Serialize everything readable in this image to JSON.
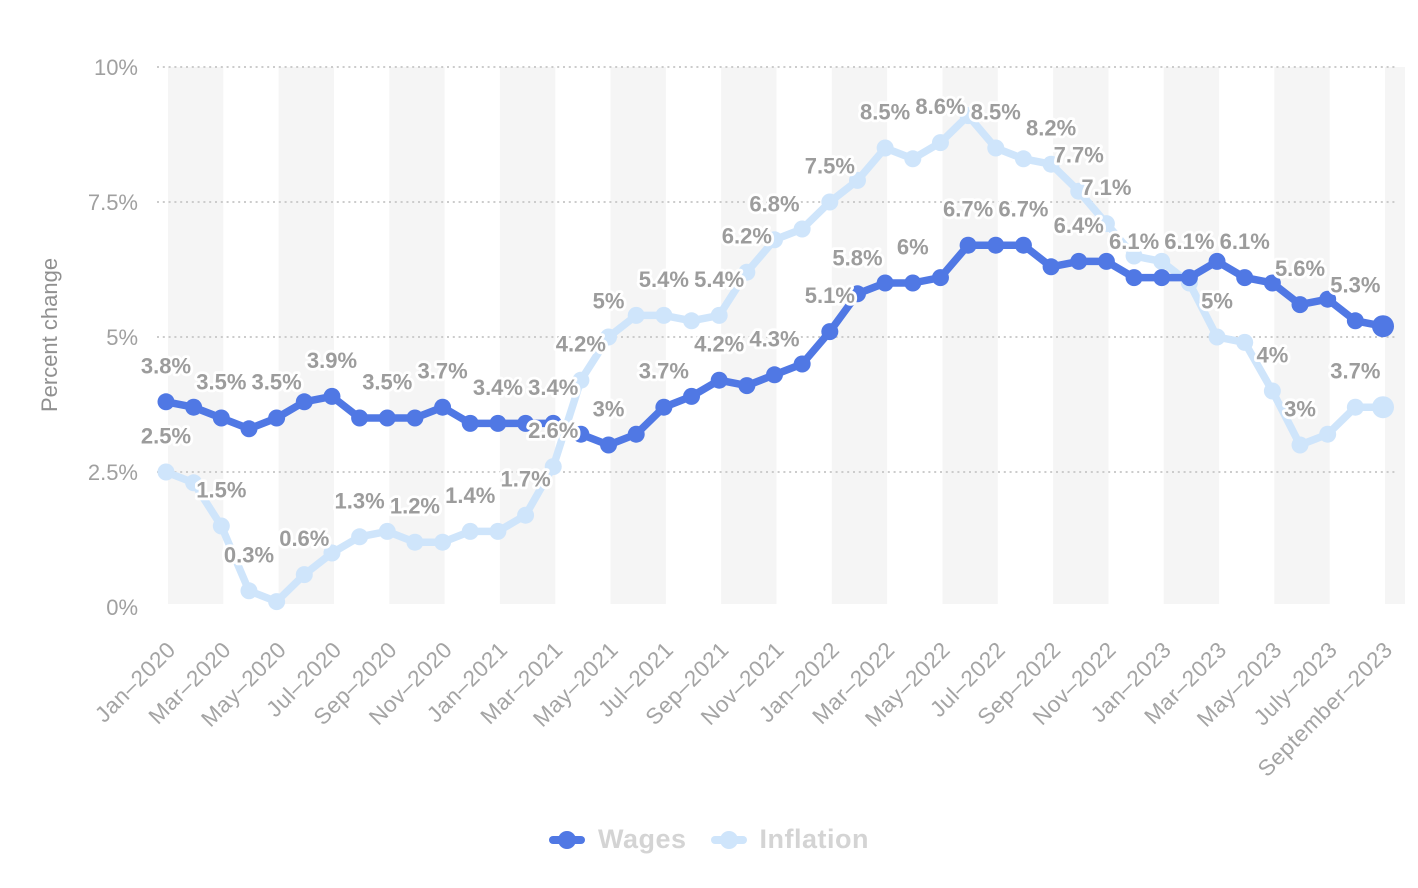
{
  "chart": {
    "y_axis": {
      "title": "Percent change",
      "ticks": [
        {
          "value": 10,
          "label": "10%"
        },
        {
          "value": 7.5,
          "label": "7.5%"
        },
        {
          "value": 5,
          "label": "5%"
        },
        {
          "value": 2.5,
          "label": "2.5%"
        },
        {
          "value": 0,
          "label": "0%"
        }
      ]
    },
    "colors": {
      "wages": "#5078e4",
      "inflation": "#cfe5fb",
      "data_label": "#9c9c9c",
      "axis_tick": "#a0a0a0",
      "axis_title": "#909090",
      "gridline": "#cccccc",
      "band": "#f5f5f5",
      "legend_text": "#d4d4d4"
    }
  },
  "chart_data": {
    "type": "line",
    "title": "",
    "xlabel": "",
    "ylabel": "Percent change",
    "ylim": [
      0,
      10
    ],
    "grid": "dotted horizontal lines at 2.5, 5, 7.5, 10 plus alternating vertical background bands",
    "legend_position": "bottom-center",
    "x": [
      "Jan-2020",
      "Feb-2020",
      "Mar-2020",
      "Apr-2020",
      "May-2020",
      "Jun-2020",
      "Jul-2020",
      "Aug-2020",
      "Sep-2020",
      "Oct-2020",
      "Nov-2020",
      "Dec-2020",
      "Jan-2021",
      "Feb-2021",
      "Mar-2021",
      "Apr-2021",
      "May-2021",
      "Jun-2021",
      "Jul-2021",
      "Aug-2021",
      "Sep-2021",
      "Oct-2021",
      "Nov-2021",
      "Dec-2021",
      "Jan-2022",
      "Feb-2022",
      "Mar-2022",
      "Apr-2022",
      "May-2022",
      "Jun-2022",
      "Jul-2022",
      "Aug-2022",
      "Sep-2022",
      "Oct-2022",
      "Nov-2022",
      "Dec-2022",
      "Jan-2023",
      "Feb-2023",
      "Mar-2023",
      "Apr-2023",
      "May-2023",
      "Jun-2023",
      "Jul-2023",
      "Aug-2023",
      "Sep-2023"
    ],
    "x_tick_indices": [
      0,
      2,
      4,
      6,
      8,
      10,
      12,
      14,
      16,
      18,
      20,
      22,
      24,
      26,
      28,
      30,
      32,
      34,
      36,
      38,
      40,
      42,
      44
    ],
    "x_tick_labels": [
      "Jan–2020",
      "Mar–2020",
      "May–2020",
      "Jul–2020",
      "Sep–2020",
      "Nov–2020",
      "Jan–2021",
      "Mar–2021",
      "May–2021",
      "Jul–2021",
      "Sep–2021",
      "Nov–2021",
      "Jan–2022",
      "Mar–2022",
      "May–2022",
      "Jul–2022",
      "Sep–2022",
      "Nov–2022",
      "Jan–2023",
      "Mar–2023",
      "May–2023",
      "July–2023",
      "September–2023"
    ],
    "series": [
      {
        "name": "Inflation",
        "color": "#cfe5fb",
        "values": [
          2.5,
          2.3,
          1.5,
          0.3,
          0.1,
          0.6,
          1.0,
          1.3,
          1.4,
          1.2,
          1.2,
          1.4,
          1.4,
          1.7,
          2.6,
          4.2,
          5.0,
          5.4,
          5.4,
          5.3,
          5.4,
          6.2,
          6.8,
          7.0,
          7.5,
          7.9,
          8.5,
          8.3,
          8.6,
          9.1,
          8.5,
          8.3,
          8.2,
          7.7,
          7.1,
          6.5,
          6.4,
          6.0,
          5.0,
          4.9,
          4.0,
          3.0,
          3.2,
          3.7,
          3.7
        ],
        "visible_point_labels": {
          "0": "2.5%",
          "2": "1.5%",
          "3": "0.3%",
          "5": "0.6%",
          "7": "1.3%",
          "9": "1.2%",
          "11": "1.4%",
          "13": "1.7%",
          "14": "2.6%",
          "15": "4.2%",
          "16": "5%",
          "18": "5.4%",
          "20": "5.4%",
          "21": "6.2%",
          "22": "6.8%",
          "24": "7.5%",
          "26": "8.5%",
          "28": "8.6%",
          "30": "8.5%",
          "32": "8.2%",
          "33": "7.7%",
          "34": "7.1%",
          "38": "5%",
          "40": "4%",
          "41": "3%",
          "43": "3.7%"
        }
      },
      {
        "name": "Wages",
        "color": "#5078e4",
        "values": [
          3.8,
          3.7,
          3.5,
          3.3,
          3.5,
          3.8,
          3.9,
          3.5,
          3.5,
          3.5,
          3.7,
          3.4,
          3.4,
          3.4,
          3.4,
          3.2,
          3.0,
          3.2,
          3.7,
          3.9,
          4.2,
          4.1,
          4.3,
          4.5,
          5.1,
          5.8,
          6.0,
          6.0,
          6.1,
          6.7,
          6.7,
          6.7,
          6.3,
          6.4,
          6.4,
          6.1,
          6.1,
          6.1,
          6.4,
          6.1,
          6.0,
          5.6,
          5.7,
          5.3,
          5.2
        ],
        "visible_point_labels": {
          "0": "3.8%",
          "2": "3.5%",
          "4": "3.5%",
          "6": "3.9%",
          "8": "3.5%",
          "10": "3.7%",
          "12": "3.4%",
          "14": "3.4%",
          "16": "3%",
          "18": "3.7%",
          "20": "4.2%",
          "22": "4.3%",
          "24": "5.1%",
          "25": "5.8%",
          "27": "6%",
          "29": "6.7%",
          "31": "6.7%",
          "33": "6.4%",
          "35": "6.1%",
          "37": "6.1%",
          "39": "6.1%",
          "41": "5.6%",
          "43": "5.3%"
        }
      }
    ]
  }
}
